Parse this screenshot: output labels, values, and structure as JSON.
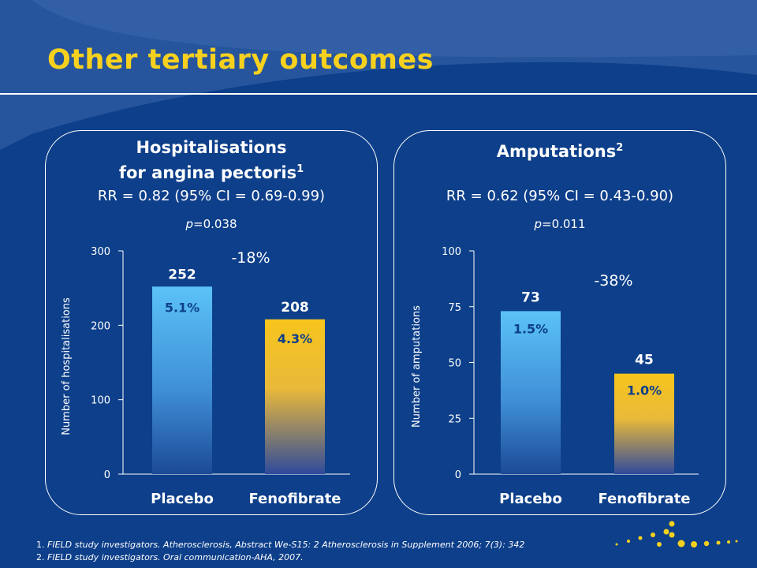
{
  "slide": {
    "title": "Other tertiary outcomes"
  },
  "panels": [
    {
      "title_line1": "Hospitalisations",
      "title_line2": "for angina pectoris",
      "title_sup": "1",
      "rr": "RR = 0.82 (95% CI = 0.69-0.99)",
      "p_label": "p",
      "p_value": "=0.038"
    },
    {
      "title_line1": "Amputations",
      "title_sup": "2",
      "rr": "RR = 0.62 (95% CI = 0.43-0.90)",
      "p_label": "p",
      "p_value": "=0.011"
    }
  ],
  "chart_data": [
    {
      "type": "bar",
      "title": "Hospitalisations for angina pectoris",
      "ylabel": "Number of hospitalisations",
      "categories": [
        "Placebo",
        "Fenofibrate"
      ],
      "values": [
        252,
        208
      ],
      "value_labels": [
        "252",
        "208"
      ],
      "pct_labels": [
        "5.1%",
        "4.3%"
      ],
      "change_label": "-18%",
      "ylim": [
        0,
        300
      ],
      "yticks": [
        0,
        100,
        200,
        300
      ],
      "colors": [
        "#5bbcf5",
        "#f5c421"
      ]
    },
    {
      "type": "bar",
      "title": "Amputations",
      "ylabel": "Number of amputations",
      "categories": [
        "Placebo",
        "Fenofibrate"
      ],
      "values": [
        73,
        45
      ],
      "value_labels": [
        "73",
        "45"
      ],
      "pct_labels": [
        "1.5%",
        "1.0%"
      ],
      "change_label": "-38%",
      "ylim": [
        0,
        100
      ],
      "yticks": [
        0,
        25,
        50,
        75,
        100
      ],
      "colors": [
        "#5bbcf5",
        "#f5c421"
      ]
    }
  ],
  "footnotes": [
    {
      "num": "1.",
      "text": "FIELD study investigators. Atherosclerosis, Abstract We-S15: 2 Atherosclerosis in Supplement 2006; 7(3): 342"
    },
    {
      "num": "2.",
      "text": "FIELD study investigators. Oral communication-AHA, 2007."
    }
  ],
  "colors": {
    "background": "#0d3f8a",
    "title": "#f7d11e",
    "placebo": "#5bbcf5",
    "fenofibrate": "#f5c421",
    "dots": "#f7d11e"
  }
}
